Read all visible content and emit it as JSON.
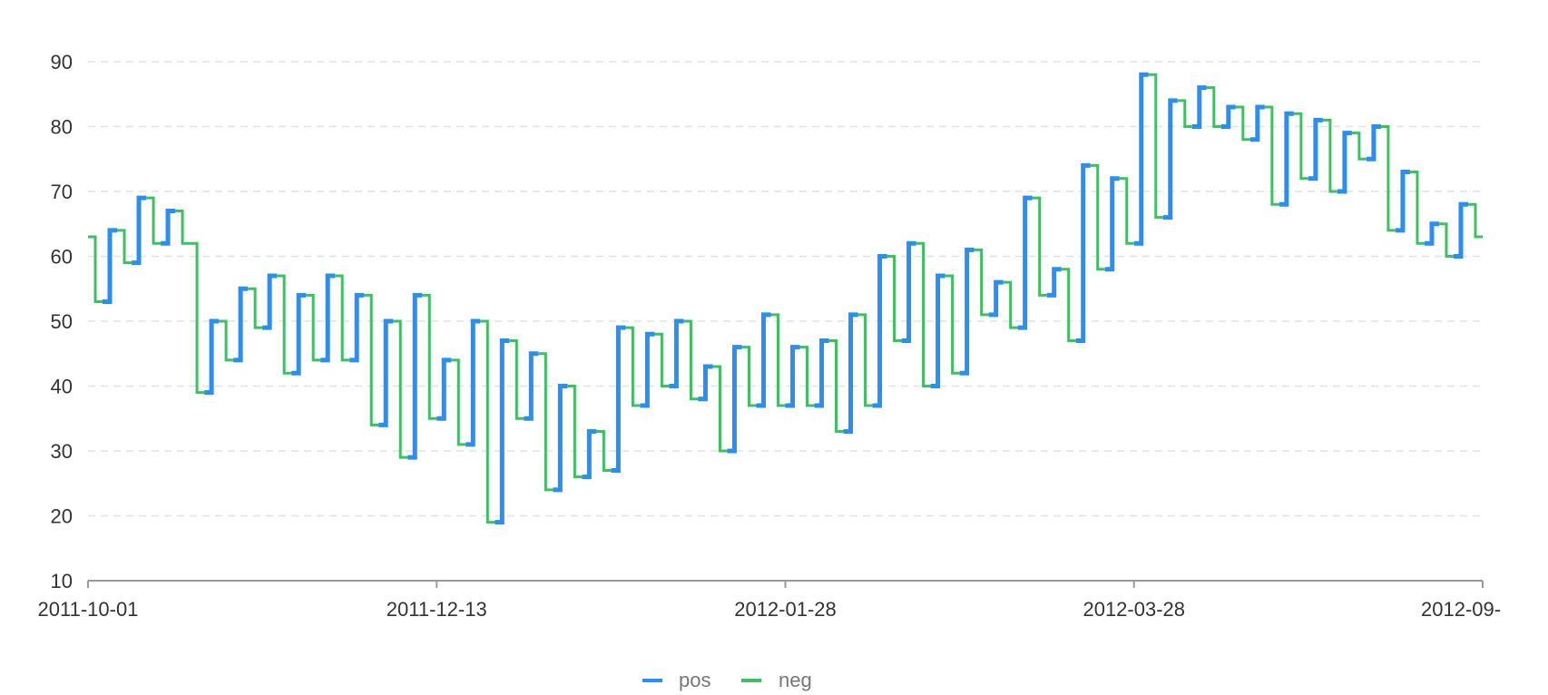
{
  "chart_data": {
    "type": "line",
    "subtype": "step",
    "title": "",
    "xlabel": "",
    "ylabel": "",
    "ylim": [
      10,
      90
    ],
    "yticks": [
      10,
      20,
      30,
      40,
      50,
      60,
      70,
      80,
      90
    ],
    "xticks": [
      "2011-10-01",
      "2011-12-13",
      "2012-01-28",
      "2012-03-28",
      "2012-09-"
    ],
    "grid": true,
    "legend_position": "bottom-center",
    "colors": {
      "pos": "#2a8ff2",
      "neg": "#3dbf62"
    },
    "series": [
      {
        "name": "pos",
        "color": "#2a8ff2",
        "description": "segments where value rises"
      },
      {
        "name": "neg",
        "color": "#3dbf62",
        "description": "segments where value falls"
      }
    ],
    "values": [
      63,
      53,
      64,
      59,
      69,
      62,
      67,
      62,
      39,
      50,
      44,
      55,
      49,
      57,
      42,
      54,
      44,
      57,
      44,
      54,
      34,
      50,
      29,
      54,
      35,
      44,
      31,
      50,
      19,
      47,
      35,
      45,
      24,
      40,
      26,
      33,
      27,
      49,
      37,
      48,
      40,
      50,
      38,
      43,
      30,
      46,
      37,
      51,
      37,
      46,
      37,
      47,
      33,
      51,
      37,
      60,
      47,
      62,
      40,
      57,
      42,
      61,
      51,
      56,
      49,
      69,
      54,
      58,
      47,
      74,
      58,
      72,
      62,
      88,
      66,
      84,
      80,
      86,
      80,
      83,
      78,
      83,
      68,
      82,
      72,
      81,
      70,
      79,
      75,
      80,
      64,
      73,
      62,
      65,
      60,
      68,
      63
    ]
  },
  "legend": {
    "pos_label": "pos",
    "neg_label": "neg"
  }
}
